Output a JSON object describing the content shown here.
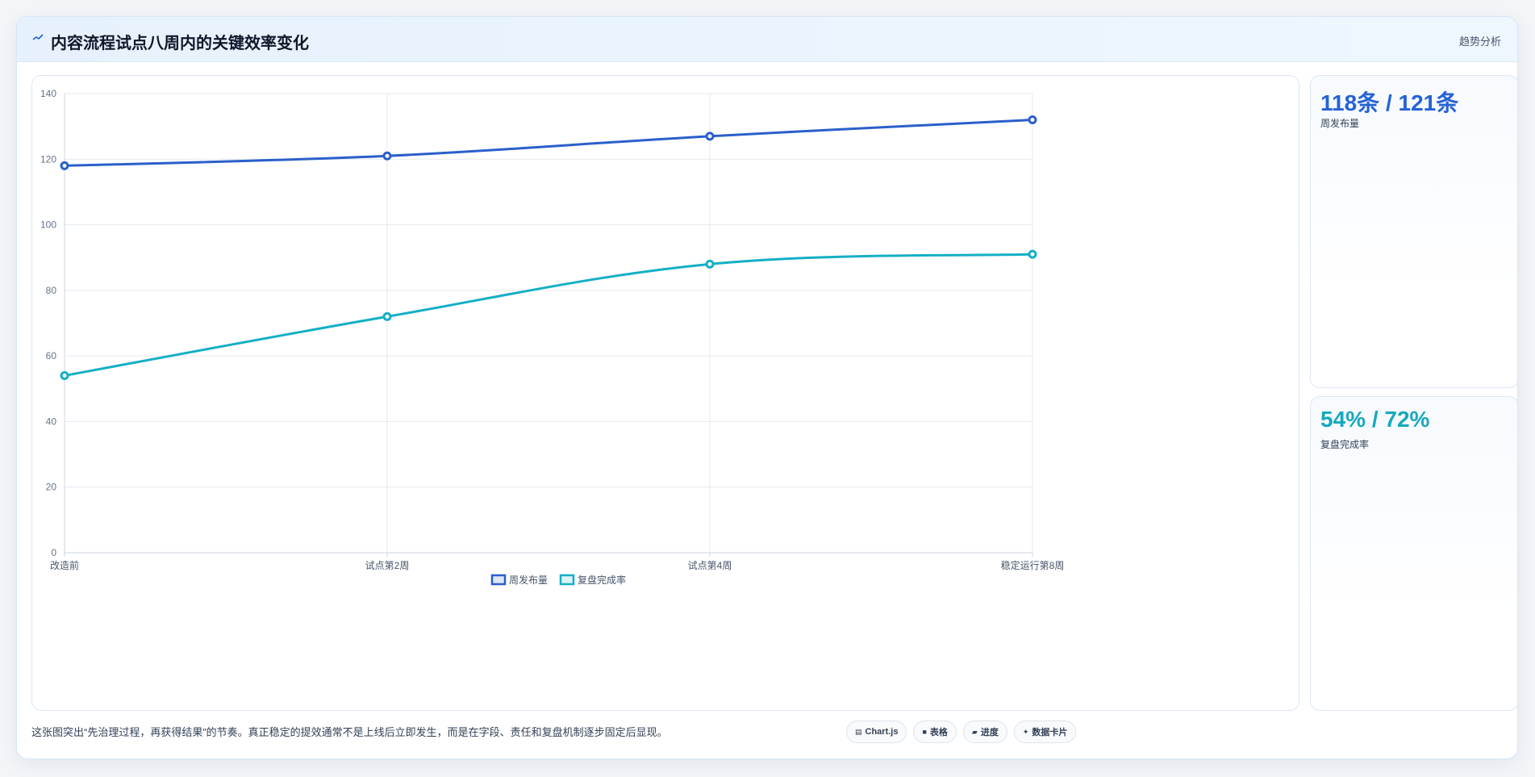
{
  "header": {
    "icon": "trend-icon",
    "title": "内容流程试点八周内的关键效率变化",
    "tag": "趋势分析"
  },
  "colors": {
    "series1": "#2b5fcb",
    "series2": "#14afc6",
    "stat1": "#2563d6",
    "stat2": "#16a8be"
  },
  "chart_data": {
    "type": "line",
    "categories": [
      "改造前",
      "试点第2周",
      "试点第4周",
      "稳定运行第8周"
    ],
    "series": [
      {
        "name": "周发布量",
        "values": [
          118,
          121,
          127,
          132
        ],
        "color": "#2b5fcb"
      },
      {
        "name": "复盘完成率",
        "values": [
          54,
          72,
          88,
          91
        ],
        "color": "#14afc6"
      }
    ],
    "ylim": [
      0,
      140
    ],
    "yticks": [
      0,
      20,
      40,
      60,
      80,
      100,
      120,
      140
    ],
    "grid": true,
    "legend": "bottom"
  },
  "stats": [
    {
      "value": "118条 / 121条",
      "label": "周发布量"
    },
    {
      "value": "54% / 72%",
      "label": "复盘完成率"
    }
  ],
  "footnote": "这张图突出“先治理过程，再获得结果”的节奏。真正稳定的提效通常不是上线后立即发生，而是在字段、责任和复盘机制逐步固定后显现。",
  "chips": [
    {
      "icon": "chart-icon",
      "glyph": "▤",
      "label": "Chart.js"
    },
    {
      "icon": "table-icon",
      "glyph": "■",
      "label": "表格"
    },
    {
      "icon": "progress-icon",
      "glyph": "▰",
      "label": "进度"
    },
    {
      "icon": "sparkle-icon",
      "glyph": "✦",
      "label": "数据卡片"
    }
  ]
}
